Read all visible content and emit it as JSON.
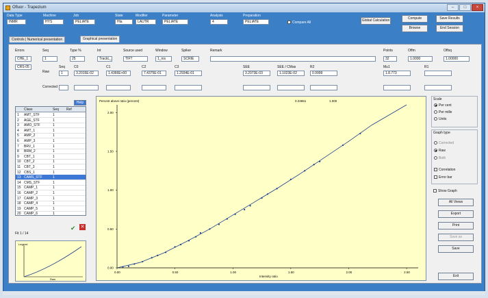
{
  "window": {
    "title": "Ofluor - Trapezium"
  },
  "header": {
    "fields": [
      {
        "label": "Data Type",
        "value": "INMR"
      },
      {
        "label": "Machine",
        "value": "HYS"
      },
      {
        "label": "Job",
        "value": "PELIATE"
      },
      {
        "label": "State",
        "value": "Hla"
      },
      {
        "label": "Modifier",
        "value": "LAUTR"
      },
      {
        "label": "Parameter",
        "value": "PELIATE"
      },
      {
        "label": "Analysis",
        "value": "4"
      },
      {
        "label": "Preparation",
        "value": "PELIATE"
      }
    ],
    "checkbox_label": "Compare All",
    "buttons": {
      "global": "Global Calculation",
      "compute": "Compute",
      "save_results": "Save Results",
      "browse": "Browse",
      "end_session": "End Session"
    }
  },
  "tabs": [
    "Controls | Numerical presentation",
    "Graphical presentation"
  ],
  "params": {
    "row1_labels": [
      "Errors",
      "Seq",
      "Type %",
      "Int",
      "Source used",
      "Window",
      "Spiker",
      "Remark",
      "Points",
      "Offm",
      "Offsq"
    ],
    "row1_values": [
      "CHE_1",
      "1",
      "25",
      "TrackL_1",
      "TIFT",
      "1_nis",
      "SCRIE",
      "",
      "32",
      "1.0000",
      "1.00000"
    ],
    "errors_value2": "CRS-05",
    "row2_labels": [
      "Seq",
      "C0",
      "C1",
      "C2",
      "C3",
      "SEE",
      "SEE / CMas",
      "R2",
      "Mu1",
      "R1"
    ],
    "row2_left_labels": [
      "Raw",
      "Corrected"
    ],
    "row2_values": [
      "1",
      "3.2015E-02",
      "1.4366E+00",
      "7.4375E-01",
      "1.2934E-01",
      "3.2073E-03",
      "1.1023E-02",
      "0.9999",
      "1.8.773",
      ""
    ]
  },
  "side": {
    "scale_title": "Scale",
    "scale_options": [
      "Per cent",
      "Per mille",
      "Units"
    ],
    "graph_title": "Graph type",
    "graph_options": [
      "Corrected",
      "Raw",
      "Both"
    ],
    "graph_checks": [
      "Correlation",
      "Error bar"
    ],
    "show_graph": "Show Graph",
    "buttons": [
      "All Views",
      "Export",
      "Print",
      "Save as",
      "Save"
    ],
    "exit": "Exit"
  },
  "table": {
    "badge": "Help",
    "headers": [
      "Class",
      "Seq",
      "Ref"
    ],
    "rows": [
      [
        "AMT_STF",
        "1"
      ],
      [
        "AGE_STF",
        "1"
      ],
      [
        "AMO_STF",
        "1"
      ],
      [
        "AMT_1",
        "1"
      ],
      [
        "AMP_2",
        "1"
      ],
      [
        "AMP_3",
        "1"
      ],
      [
        "BRV_1",
        "1"
      ],
      [
        "BRM_2",
        "1"
      ],
      [
        "CBT_1",
        "1"
      ],
      [
        "CBT_2",
        "1"
      ],
      [
        "CBT_3",
        "1"
      ],
      [
        "CBS_1",
        "1"
      ],
      [
        "CAMS_STF",
        "1"
      ],
      [
        "CMS_STF",
        "1"
      ],
      [
        "CAMP_1",
        "1"
      ],
      [
        "CAMP_2",
        "1"
      ],
      [
        "CAMP_3",
        "1"
      ],
      [
        "CAMP_4",
        "1"
      ],
      [
        "CAMP_5",
        "1"
      ],
      [
        "CAMP_6",
        "1"
      ]
    ],
    "footer": "Fit 1 / 14"
  },
  "chart_data": {
    "type": "scatter",
    "title": "Percent above ratio (percent)",
    "legend": [
      "0.23651",
      "1.000"
    ],
    "xlabel": "Intensity ratio",
    "xticks": [
      "0.00",
      "0.50",
      "1.00",
      "1.50",
      "2.00",
      "2.50"
    ],
    "yticks": [
      "0.00",
      "0.50",
      "1.00",
      "1.50",
      "2.00"
    ],
    "xlim": [
      0,
      2.6
    ],
    "ylim": [
      0,
      2.1
    ],
    "series": [
      {
        "type": "scatter",
        "x": [
          0.05,
          0.1,
          0.15,
          0.22,
          0.3,
          0.35,
          0.42,
          0.5,
          0.55,
          0.62,
          0.68,
          0.72,
          0.8,
          0.88,
          0.95,
          1.02,
          1.1,
          1.15,
          1.25,
          1.3,
          1.38,
          1.5,
          1.62,
          1.7,
          1.75,
          1.95,
          2.1
        ],
        "y": [
          0.01,
          0.02,
          0.05,
          0.08,
          0.13,
          0.16,
          0.2,
          0.27,
          0.3,
          0.35,
          0.4,
          0.45,
          0.5,
          0.56,
          0.63,
          0.69,
          0.75,
          0.8,
          0.9,
          0.95,
          1.02,
          1.14,
          1.25,
          1.33,
          1.37,
          1.58,
          1.73
        ]
      },
      {
        "type": "line",
        "x": [
          0,
          0.2,
          0.4,
          0.6,
          0.8,
          1.0,
          1.2,
          1.4,
          1.6,
          1.8,
          2.0,
          2.2,
          2.5
        ],
        "y": [
          0,
          0.07,
          0.19,
          0.34,
          0.5,
          0.68,
          0.86,
          1.04,
          1.23,
          1.43,
          1.63,
          1.84,
          2.1
        ]
      }
    ],
    "grid": false,
    "legend_position": "top-right"
  },
  "mini_chart": {
    "title": "Legend",
    "label": "Raw"
  }
}
